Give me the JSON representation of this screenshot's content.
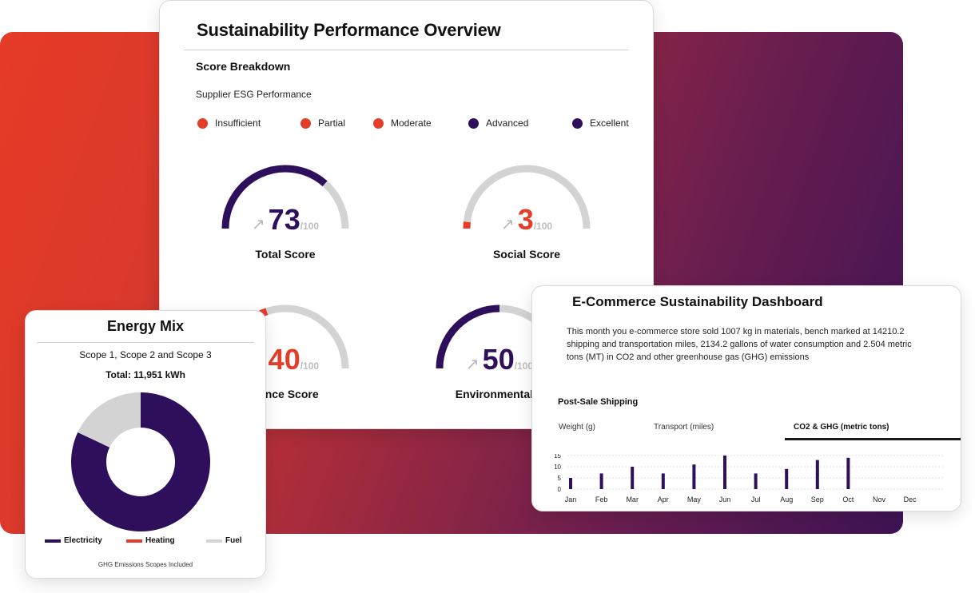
{
  "colors": {
    "purple": "#2e0f5c",
    "red": "#e43d2a",
    "gray": "#d3d3d3"
  },
  "main": {
    "title": "Sustainability Performance Overview",
    "section_title": "Score Breakdown",
    "subtitle": "Supplier ESG Performance",
    "legend": [
      {
        "label": "Insufficient",
        "color": "#e43d2a"
      },
      {
        "label": "Partial",
        "color": "#e43d2a"
      },
      {
        "label": "Moderate",
        "color": "#e43d2a"
      },
      {
        "label": "Advanced",
        "color": "#2e0f5c"
      },
      {
        "label": "Excellent",
        "color": "#2e0f5c"
      }
    ],
    "gauges": [
      {
        "label": "Total Score",
        "value": "73",
        "max": "/100",
        "fraction": 0.73,
        "color": "#2e0f5c",
        "arrow": "↗"
      },
      {
        "label": "Social Score",
        "value": "3",
        "max": "/100",
        "fraction": 0.03,
        "color": "#e43d2a",
        "arrow": "↗"
      },
      {
        "label": "nance Score",
        "value": "40",
        "max": "/100",
        "fraction": 0.4,
        "color": "#e43d2a",
        "arrow": "↗"
      },
      {
        "label": "Environmental S",
        "value": "50",
        "max": "/100",
        "fraction": 0.5,
        "color": "#2e0f5c",
        "arrow": "↗"
      }
    ]
  },
  "energy": {
    "title": "Energy Mix",
    "subtitle": "Scope 1, Scope 2 and Scope 3",
    "total": "Total: 11,951 kWh",
    "slices": [
      {
        "label": "Electricity",
        "percent": 82,
        "color": "#2e0f5c"
      },
      {
        "label": "Heating",
        "percent": 0,
        "color": "#e43d2a"
      },
      {
        "label": "Fuel",
        "percent": 18,
        "color": "#d3d3d3"
      }
    ],
    "footer": "GHG Emissions Scopes Included"
  },
  "ecom": {
    "title": "E-Commerce Sustainability Dashboard",
    "description": "This month you e-commerce store sold 1007 kg in materials, bench marked at 14210.2 shipping and transportation miles, 2134.2 gallons of water consumption and 2.504 metric tons (MT) in CO2 and other greenhouse gas (GHG) emissions",
    "shipping_title": "Post-Sale Shipping",
    "tabs": [
      "Weight (g)",
      "Transport (miles)",
      "CO2 & GHG (metric tons)"
    ],
    "active_tab": 2
  },
  "chart_data": {
    "type": "bar",
    "title": "Post-Sale Shipping",
    "categories": [
      "Jan",
      "Feb",
      "Mar",
      "Apr",
      "May",
      "Jun",
      "Jul",
      "Aug",
      "Sep",
      "Oct",
      "Nov",
      "Dec"
    ],
    "values": [
      5,
      7,
      10,
      7,
      11,
      15,
      7,
      9,
      13,
      14,
      0,
      0
    ],
    "yticks": [
      "15",
      "10",
      "5",
      "0"
    ],
    "ylim": [
      0,
      15
    ],
    "xlabel": "",
    "ylabel": ""
  }
}
